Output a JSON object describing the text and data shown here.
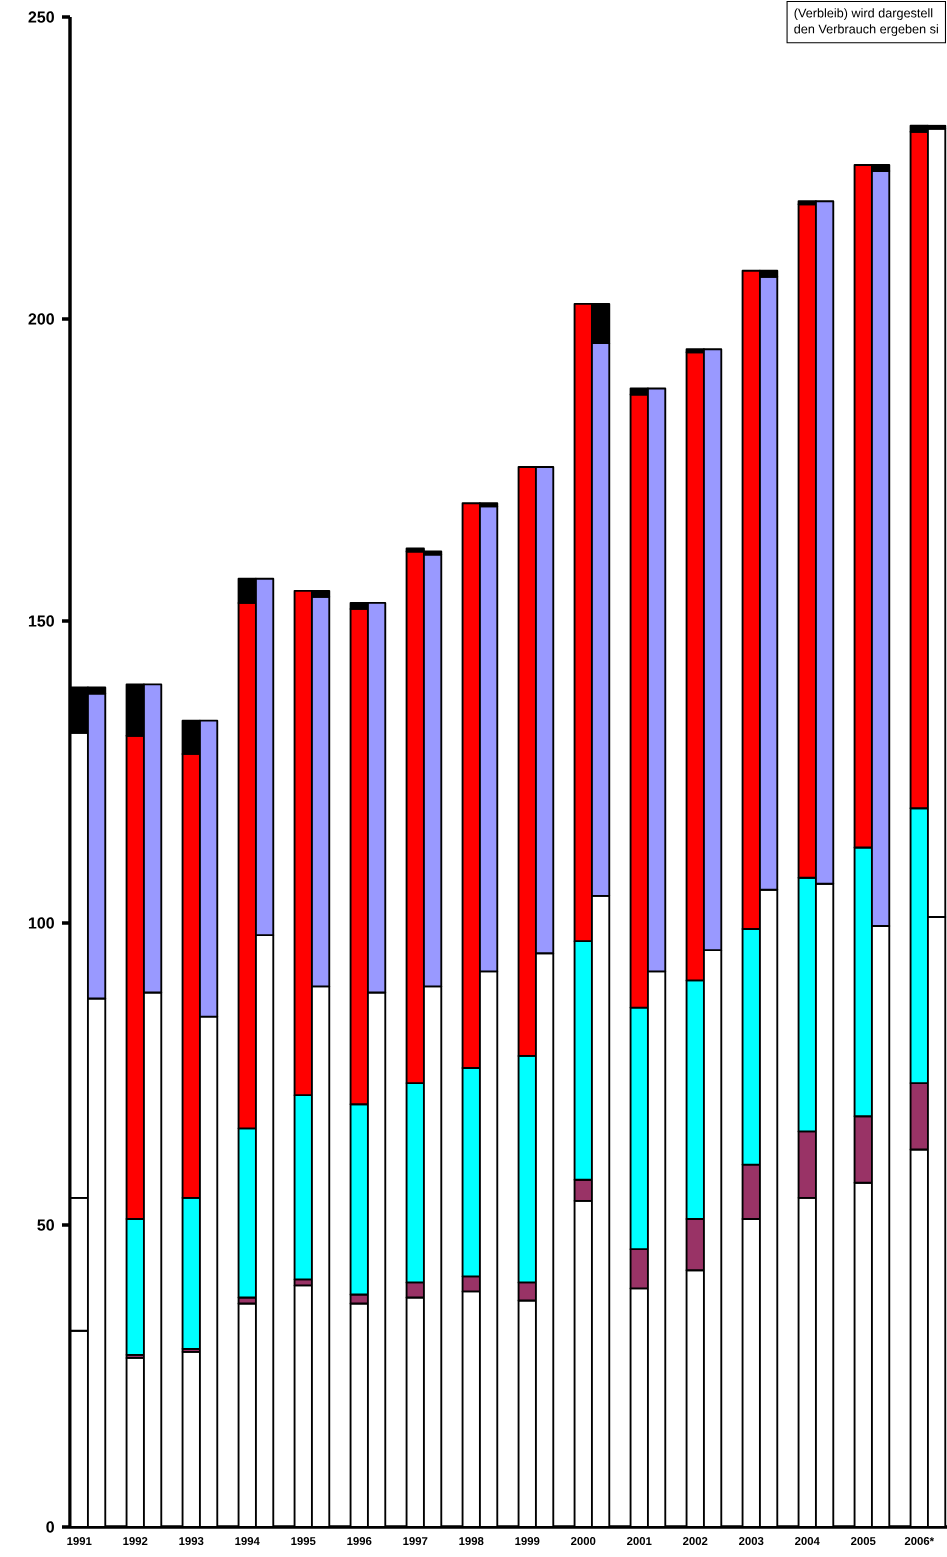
{
  "chart_data": {
    "type": "bar",
    "stacked": true,
    "categories": [
      "1991",
      null,
      "1992",
      null,
      "1993",
      null,
      "1994",
      null,
      "1995",
      null,
      "1996",
      null,
      "1997",
      null,
      "1998",
      null,
      "1999",
      null,
      "2000",
      null,
      "2001",
      null,
      "2002",
      null,
      "2003",
      null,
      "2004",
      null,
      "2005",
      null,
      "2006*",
      null
    ],
    "series": [
      {
        "color": "#ffffff",
        "values": [
          32.5,
          null,
          28,
          null,
          29,
          null,
          37,
          null,
          40,
          null,
          37,
          null,
          38,
          null,
          39,
          null,
          37.5,
          null,
          54,
          null,
          39.5,
          null,
          42.5,
          null,
          51,
          null,
          54.5,
          null,
          57,
          null,
          62.5,
          null
        ]
      },
      {
        "color": "#993366",
        "values": [
          null,
          null,
          0.5,
          null,
          0.5,
          null,
          1,
          null,
          1,
          null,
          1.5,
          null,
          2.5,
          null,
          2.5,
          null,
          3,
          null,
          3.5,
          null,
          6.5,
          null,
          8.5,
          null,
          9,
          null,
          11,
          null,
          11,
          null,
          11,
          null
        ]
      },
      {
        "colors": [
          "#ffffff",
          "#00ffff",
          "#00ffff",
          "#00ffff",
          "#00ffff",
          "#00ffff",
          "#00ffff",
          "#00ffff",
          "#00ffff",
          "#00ffff",
          "#00ffff",
          "#00ffff",
          "#00ffff",
          "#00ffff",
          "#00ffff",
          "#00ffff",
          "#00ffff",
          "#00ffff",
          "#00ffff",
          "#00ffff",
          "#00ffff",
          "#00ffff",
          "#00ffff",
          "#00ffff",
          "#00ffff",
          "#00ffff",
          "#00ffff",
          "#00ffff",
          "#00ffff",
          "#00ffff",
          "#00ffff",
          "#00ffff"
        ],
        "values": [
          22,
          null,
          22.5,
          null,
          25,
          null,
          28,
          null,
          30.5,
          null,
          31.5,
          null,
          33,
          null,
          34.5,
          null,
          37.5,
          null,
          39.5,
          null,
          40,
          null,
          39.5,
          null,
          39,
          null,
          42,
          null,
          44.5,
          null,
          45.5,
          null
        ]
      },
      {
        "colors": [
          "#ffffff",
          "#ff0000",
          "#ff0000",
          "#ff0000",
          "#ff0000",
          "#ff0000",
          "#ff0000",
          "#ff0000",
          "#ff0000",
          "#ff0000",
          "#ff0000",
          "#ff0000",
          "#ff0000",
          "#ff0000",
          "#ff0000",
          "#ff0000",
          "#ff0000",
          "#ff0000",
          "#ff0000",
          "#ff0000",
          "#ff0000",
          "#ff0000",
          "#ff0000",
          "#ff0000",
          "#ff0000",
          "#ff0000",
          "#ff0000",
          "#ff0000",
          "#ff0000",
          "#ff0000",
          "#ff0000",
          "#ff0000"
        ],
        "values": [
          77,
          null,
          80,
          null,
          73.5,
          null,
          87,
          null,
          83.5,
          null,
          82,
          null,
          88,
          null,
          93.5,
          null,
          97.5,
          null,
          105.5,
          null,
          101.5,
          null,
          104,
          null,
          109,
          null,
          111.5,
          null,
          113,
          null,
          112,
          null
        ]
      },
      {
        "color": "#000000",
        "values": [
          7.5,
          null,
          8.5,
          null,
          5.5,
          null,
          4,
          null,
          null,
          null,
          1,
          null,
          0.5,
          null,
          null,
          null,
          null,
          null,
          null,
          null,
          1,
          null,
          0.5,
          null,
          null,
          null,
          0.5,
          null,
          null,
          null,
          1,
          null
        ]
      },
      {
        "color": "#ffffff",
        "values": [
          null,
          87.5,
          null,
          88.5,
          null,
          84.5,
          null,
          98,
          null,
          89.5,
          null,
          88.5,
          null,
          89.5,
          null,
          92,
          null,
          95,
          null,
          104.5,
          null,
          92,
          null,
          95.5,
          null,
          105.5,
          null,
          106.5,
          null,
          99.5,
          null,
          101
        ]
      },
      {
        "colors": [
          "#9999ff",
          "#9999ff",
          "#9999ff",
          "#9999ff",
          "#9999ff",
          "#9999ff",
          "#9999ff",
          "#9999ff",
          "#9999ff",
          "#9999ff",
          "#9999ff",
          "#9999ff",
          "#9999ff",
          "#9999ff",
          "#9999ff",
          "#9999ff",
          "#9999ff",
          "#9999ff",
          "#9999ff",
          "#9999ff",
          "#9999ff",
          "#9999ff",
          "#9999ff",
          "#9999ff",
          "#9999ff",
          "#9999ff",
          "#9999ff",
          "#9999ff",
          "#9999ff",
          "#9999ff",
          "#9999ff",
          "#ffffff"
        ],
        "values": [
          null,
          50.5,
          null,
          51,
          null,
          49,
          null,
          59,
          null,
          64.5,
          null,
          64.5,
          null,
          71.5,
          null,
          77,
          null,
          80.5,
          null,
          91.5,
          null,
          96.5,
          null,
          99.5,
          null,
          101.5,
          null,
          113,
          null,
          125,
          null,
          130.5
        ]
      },
      {
        "color": "#000000",
        "values": [
          null,
          1,
          null,
          null,
          null,
          null,
          null,
          null,
          null,
          1,
          null,
          null,
          null,
          0.5,
          null,
          0.5,
          null,
          null,
          null,
          6.5,
          null,
          null,
          null,
          null,
          null,
          1,
          null,
          null,
          null,
          1,
          null,
          0.5
        ]
      }
    ],
    "ylim": [
      0,
      250
    ],
    "yticks": [
      0,
      50,
      100,
      150,
      200,
      250
    ],
    "annotations": [
      "(Verbleib) wird dargestell",
      "den Verbrauch ergeben si"
    ]
  }
}
